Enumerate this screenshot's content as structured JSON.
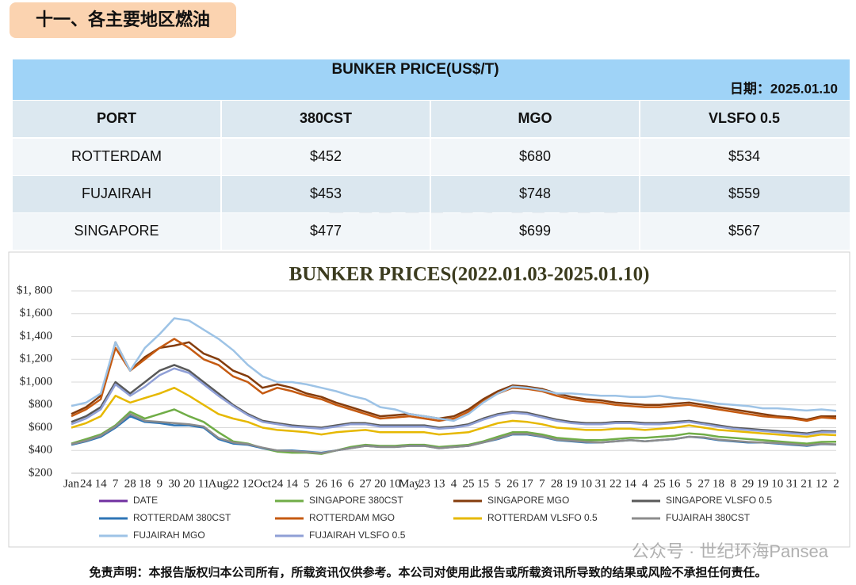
{
  "header": {
    "title": "十一、各主要地区燃油"
  },
  "table": {
    "title": "BUNKER PRICE(US$/T)",
    "date": "日期：2025.01.10",
    "columns": [
      "PORT",
      "380CST",
      "MGO",
      "VLSFO 0.5"
    ],
    "rows": [
      [
        "ROTTERDAM",
        "$452",
        "$680",
        "$534"
      ],
      [
        "FUJAIRAH",
        "$453",
        "$748",
        "$559"
      ],
      [
        "SINGAPORE",
        "$477",
        "$699",
        "$567"
      ]
    ]
  },
  "watermark": "pansea",
  "chart_data": {
    "type": "line",
    "title": "BUNKER PRICES(2022.01.03-2025.01.10)",
    "categories": [
      "Jan",
      "24",
      "14",
      "7",
      "28",
      "18",
      "9",
      "30",
      "20",
      "11",
      "Aug",
      "22",
      "12",
      "Oct",
      "24",
      "14",
      "5",
      "26",
      "16",
      "6",
      "27",
      "20",
      "10",
      "May",
      "23",
      "13",
      "4",
      "25",
      "15",
      "5",
      "26",
      "17",
      "7",
      "28",
      "19",
      "10",
      "31",
      "22",
      "14",
      "4",
      "25",
      "16",
      "5",
      "27",
      "18",
      "8",
      "29",
      "19",
      "10",
      "31",
      "21",
      "12",
      "2"
    ],
    "ylim": [
      200,
      1800
    ],
    "yticks": [
      {
        "value": 200,
        "label": "$200"
      },
      {
        "value": 400,
        "label": "$400"
      },
      {
        "value": 600,
        "label": "$600"
      },
      {
        "value": 800,
        "label": "$800"
      },
      {
        "value": 1000,
        "label": "$1,000"
      },
      {
        "value": 1200,
        "label": "$1,200"
      },
      {
        "value": 1400,
        "label": "$1,400"
      },
      {
        "value": 1600,
        "label": "$1,600"
      },
      {
        "value": 1800,
        "label": "$1, 800"
      }
    ],
    "grid": true,
    "legend_only": [
      {
        "name": "DATE",
        "color": "#7030a0"
      }
    ],
    "series": [
      {
        "name": "SINGAPORE 380CST",
        "color": "#70ad47",
        "values": [
          460,
          500,
          540,
          620,
          740,
          680,
          720,
          760,
          700,
          650,
          560,
          480,
          460,
          420,
          390,
          380,
          380,
          370,
          400,
          430,
          450,
          440,
          440,
          450,
          450,
          430,
          440,
          450,
          480,
          520,
          560,
          560,
          540,
          510,
          500,
          490,
          490,
          500,
          510,
          510,
          520,
          530,
          550,
          540,
          520,
          510,
          500,
          490,
          480,
          470,
          460,
          475,
          477
        ]
      },
      {
        "name": "SINGAPORE MGO",
        "color": "#843c0c",
        "values": [
          720,
          780,
          880,
          1350,
          1100,
          1220,
          1300,
          1320,
          1350,
          1250,
          1200,
          1100,
          1050,
          950,
          980,
          950,
          900,
          870,
          820,
          780,
          740,
          700,
          710,
          720,
          700,
          680,
          700,
          760,
          850,
          920,
          970,
          960,
          940,
          900,
          870,
          850,
          840,
          820,
          810,
          800,
          800,
          810,
          820,
          800,
          780,
          760,
          740,
          720,
          700,
          690,
          670,
          700,
          699
        ]
      },
      {
        "name": "SINGAPORE VLSFO 0.5",
        "color": "#595959",
        "values": [
          650,
          700,
          780,
          1000,
          900,
          1000,
          1100,
          1150,
          1100,
          1000,
          900,
          800,
          720,
          660,
          640,
          620,
          610,
          600,
          620,
          640,
          640,
          620,
          620,
          620,
          620,
          600,
          610,
          630,
          680,
          720,
          740,
          730,
          700,
          670,
          650,
          640,
          640,
          650,
          650,
          640,
          640,
          650,
          660,
          640,
          620,
          600,
          590,
          580,
          570,
          560,
          550,
          570,
          567
        ]
      },
      {
        "name": "ROTTERDAM 380CST",
        "color": "#2e75b6",
        "values": [
          450,
          480,
          520,
          600,
          700,
          650,
          640,
          620,
          620,
          600,
          500,
          460,
          450,
          420,
          400,
          400,
          390,
          380,
          400,
          420,
          440,
          430,
          430,
          440,
          440,
          420,
          430,
          440,
          470,
          500,
          540,
          540,
          520,
          490,
          480,
          470,
          470,
          480,
          490,
          480,
          490,
          500,
          520,
          510,
          490,
          480,
          470,
          470,
          460,
          450,
          440,
          455,
          452
        ]
      },
      {
        "name": "ROTTERDAM MGO",
        "color": "#c55a11",
        "values": [
          700,
          760,
          850,
          1300,
          1100,
          1200,
          1300,
          1380,
          1300,
          1200,
          1150,
          1050,
          1000,
          900,
          950,
          920,
          880,
          850,
          800,
          760,
          720,
          680,
          690,
          700,
          680,
          660,
          680,
          740,
          830,
          900,
          950,
          940,
          920,
          880,
          850,
          830,
          820,
          800,
          790,
          780,
          780,
          790,
          800,
          780,
          760,
          740,
          720,
          700,
          690,
          680,
          660,
          690,
          680
        ]
      },
      {
        "name": "ROTTERDAM VLSFO 0.5",
        "color": "#e6b800",
        "values": [
          600,
          640,
          700,
          880,
          820,
          860,
          900,
          950,
          880,
          800,
          720,
          680,
          650,
          600,
          580,
          570,
          560,
          540,
          560,
          570,
          580,
          560,
          560,
          560,
          560,
          540,
          550,
          560,
          600,
          640,
          660,
          650,
          630,
          600,
          590,
          580,
          580,
          590,
          590,
          580,
          590,
          600,
          620,
          600,
          580,
          570,
          560,
          550,
          540,
          530,
          520,
          540,
          534
        ]
      },
      {
        "name": "FUJAIRAH  380CST",
        "color": "#8c8c8c",
        "values": [
          455,
          485,
          530,
          610,
          720,
          660,
          650,
          640,
          630,
          610,
          510,
          470,
          455,
          425,
          400,
          395,
          385,
          375,
          400,
          420,
          440,
          430,
          430,
          440,
          440,
          420,
          430,
          440,
          470,
          505,
          545,
          545,
          525,
          495,
          485,
          475,
          470,
          480,
          490,
          480,
          490,
          500,
          520,
          515,
          495,
          485,
          475,
          470,
          465,
          455,
          445,
          458,
          453
        ]
      },
      {
        "name": "FUJAIRAH MGO",
        "color": "#9dc3e6",
        "values": [
          790,
          820,
          900,
          1350,
          1100,
          1300,
          1420,
          1560,
          1540,
          1460,
          1380,
          1280,
          1150,
          1050,
          1000,
          1000,
          980,
          950,
          920,
          880,
          850,
          780,
          760,
          720,
          700,
          680,
          660,
          720,
          820,
          900,
          960,
          950,
          930,
          900,
          900,
          890,
          880,
          880,
          870,
          870,
          880,
          860,
          850,
          830,
          810,
          800,
          790,
          770,
          770,
          760,
          750,
          760,
          748
        ]
      },
      {
        "name": "FUJAIRAH VLSFO 0.5",
        "color": "#8f9fd6",
        "values": [
          630,
          680,
          760,
          980,
          880,
          960,
          1060,
          1120,
          1080,
          980,
          880,
          790,
          710,
          650,
          630,
          610,
          600,
          590,
          610,
          630,
          630,
          610,
          610,
          610,
          610,
          590,
          600,
          620,
          670,
          710,
          730,
          720,
          690,
          660,
          640,
          630,
          630,
          640,
          640,
          630,
          630,
          640,
          650,
          630,
          610,
          590,
          580,
          570,
          560,
          550,
          540,
          560,
          559
        ]
      }
    ]
  },
  "footer": {
    "disclaimer": "免责声明：本报告版权归本公司所有，所载资讯仅供参考。本公司对使用此报告或所载资讯所导致的结果或风险不承担任何责任。",
    "source": "公众号 · 世纪环海Pansea"
  }
}
